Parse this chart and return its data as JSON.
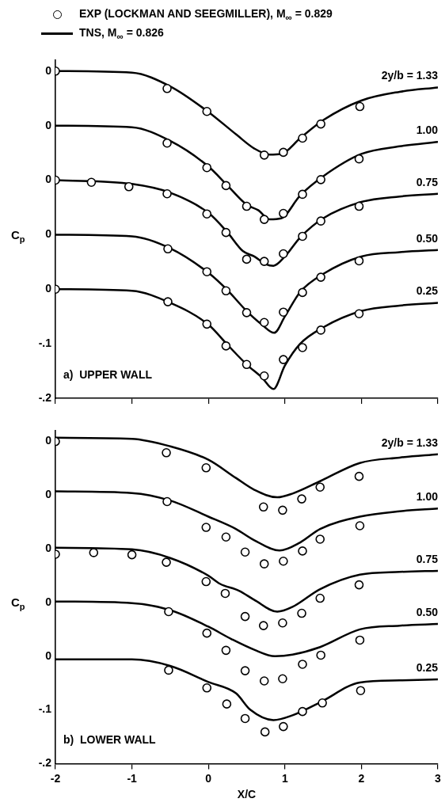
{
  "chart_data": [
    {
      "type": "line",
      "legend": "top",
      "ylabel": "C$_{p}$",
      "xlim": [
        -2,
        3
      ],
      "xticks": [
        -2,
        -1,
        0,
        1,
        2,
        3
      ],
      "ylim": [
        -0.2,
        0.42
      ],
      "yticks": [
        {
          "value": -0.2,
          "label": "-.2"
        },
        {
          "value": -0.1,
          "label": "-.1"
        },
        {
          "value": 0,
          "label": "0"
        },
        {
          "value": 0.1,
          "label": "0"
        },
        {
          "value": 0.2,
          "label": "0"
        },
        {
          "value": 0.3,
          "label": "0"
        },
        {
          "value": 0.4,
          "label": "0"
        }
      ],
      "tick_labels": "y",
      "annotations": [
        "a)  UPPER WALL",
        "2y/b = 1.33",
        "1.00",
        "0.75",
        "0.50",
        "0.25"
      ],
      "series": [
        {
          "type": "scatter",
          "name": "EXP (LOCKMAN AND SEEGMILLER), M$_{∞}$ = 0.829",
          "color": "#000000",
          "marker": "circle",
          "x": [
            -2,
            -0.54,
            -0.02,
            0.73,
            0.98,
            1.23,
            1.47,
            1.98
          ],
          "values": [
            0.4,
            0.368,
            0.326,
            0.246,
            0.251,
            0.277,
            0.303,
            0.335
          ]
        },
        {
          "type": "line",
          "name": "TNS, M$_{∞}$ = 0.826",
          "color": "#000000",
          "marker": "none",
          "x": [
            -2,
            -1,
            -0.5,
            0,
            0.37,
            0.6,
            0.8,
            0.95,
            1.2,
            1.5,
            2,
            2.5,
            3
          ],
          "values": [
            0.4,
            0.397,
            0.372,
            0.325,
            0.283,
            0.258,
            0.247,
            0.248,
            0.277,
            0.31,
            0.346,
            0.362,
            0.37
          ]
        },
        {
          "type": "scatter",
          "color": "#000000",
          "marker": "circle",
          "x": [
            -0.54,
            -0.02,
            0.23,
            0.5,
            0.73,
            0.98,
            1.23,
            1.47,
            1.97
          ],
          "values": [
            0.268,
            0.223,
            0.19,
            0.152,
            0.128,
            0.139,
            0.174,
            0.201,
            0.239
          ]
        },
        {
          "type": "line",
          "color": "#000000",
          "marker": "none",
          "x": [
            -2,
            -1,
            -0.5,
            0,
            0.25,
            0.5,
            0.65,
            0.8,
            0.95,
            1.2,
            1.5,
            2,
            2.5,
            3
          ],
          "values": [
            0.3,
            0.297,
            0.272,
            0.225,
            0.19,
            0.155,
            0.145,
            0.128,
            0.13,
            0.172,
            0.207,
            0.248,
            0.262,
            0.27
          ]
        },
        {
          "type": "scatter",
          "color": "#000000",
          "marker": "circle",
          "x": [
            -2,
            -1.53,
            -1.04,
            -0.54,
            -0.02,
            0.23,
            0.5,
            0.73,
            0.98,
            1.23,
            1.47,
            1.97
          ],
          "values": [
            0.2,
            0.196,
            0.188,
            0.175,
            0.138,
            0.104,
            0.055,
            0.051,
            0.065,
            0.097,
            0.125,
            0.152
          ]
        },
        {
          "type": "line",
          "color": "#000000",
          "marker": "none",
          "x": [
            -2,
            -1,
            -0.5,
            0,
            0.25,
            0.45,
            0.6,
            0.75,
            0.85,
            1,
            1.2,
            1.5,
            2,
            2.5,
            3
          ],
          "values": [
            0.2,
            0.193,
            0.177,
            0.14,
            0.104,
            0.07,
            0.06,
            0.046,
            0.043,
            0.06,
            0.095,
            0.13,
            0.16,
            0.17,
            0.175
          ]
        },
        {
          "type": "scatter",
          "color": "#000000",
          "marker": "circle",
          "x": [
            -0.53,
            -0.02,
            0.23,
            0.5,
            0.73,
            0.98,
            1.23,
            1.47,
            1.97
          ],
          "values": [
            0.074,
            0.032,
            -0.003,
            -0.043,
            -0.061,
            -0.042,
            -0.006,
            0.022,
            0.052
          ]
        },
        {
          "type": "line",
          "color": "#000000",
          "marker": "none",
          "x": [
            -2,
            -1,
            -0.5,
            0,
            0.25,
            0.5,
            0.7,
            0.86,
            1,
            1.2,
            1.5,
            2,
            2.5,
            3
          ],
          "values": [
            0.1,
            0.097,
            0.075,
            0.03,
            -0.002,
            -0.04,
            -0.065,
            -0.08,
            -0.05,
            -0.005,
            0.028,
            0.06,
            0.068,
            0.072
          ]
        },
        {
          "type": "scatter",
          "color": "#000000",
          "marker": "circle",
          "x": [
            -2,
            -0.53,
            -0.02,
            0.23,
            0.5,
            0.73,
            0.98,
            1.23,
            1.47,
            1.97
          ],
          "values": [
            0,
            -0.023,
            -0.064,
            -0.104,
            -0.138,
            -0.159,
            -0.129,
            -0.107,
            -0.075,
            -0.045
          ]
        },
        {
          "type": "line",
          "color": "#000000",
          "marker": "none",
          "x": [
            -2,
            -1,
            -0.5,
            0,
            0.25,
            0.5,
            0.7,
            0.85,
            1,
            1.2,
            1.5,
            2,
            2.5,
            3
          ],
          "values": [
            0,
            -0.003,
            -0.025,
            -0.065,
            -0.102,
            -0.138,
            -0.162,
            -0.183,
            -0.14,
            -0.1,
            -0.07,
            -0.04,
            -0.03,
            -0.025
          ]
        }
      ]
    },
    {
      "type": "line",
      "ylabel": "C$_{p}$",
      "xlabel": "X/C",
      "xlim": [
        -2,
        3
      ],
      "xticks": [
        -2,
        -1,
        0,
        1,
        2,
        3
      ],
      "ylim": [
        -0.2,
        0.42
      ],
      "yticks": [
        {
          "value": -0.2,
          "label": "-.2"
        },
        {
          "value": -0.1,
          "label": "-.1"
        },
        {
          "value": 0,
          "label": "0"
        },
        {
          "value": 0.1,
          "label": "0"
        },
        {
          "value": 0.2,
          "label": "0"
        },
        {
          "value": 0.3,
          "label": "0"
        },
        {
          "value": 0.4,
          "label": "0"
        }
      ],
      "annotations": [
        "b)  LOWER WALL",
        "2y/b = 1.33",
        "1.00",
        "0.75",
        "0.50",
        "0.25"
      ],
      "series": [
        {
          "type": "scatter",
          "color": "#000000",
          "marker": "circle",
          "x": [
            -2,
            -0.55,
            -0.03,
            0.72,
            0.97,
            1.22,
            1.46,
            1.97
          ],
          "values": [
            0.4,
            0.379,
            0.351,
            0.278,
            0.272,
            0.293,
            0.315,
            0.335
          ]
        },
        {
          "type": "line",
          "color": "#000000",
          "marker": "none",
          "x": [
            -2,
            -1,
            -0.5,
            0,
            0.36,
            0.6,
            0.9,
            1.1,
            1.46,
            1.98,
            2.5,
            3
          ],
          "values": [
            0.407,
            0.405,
            0.391,
            0.366,
            0.332,
            0.31,
            0.296,
            0.303,
            0.326,
            0.36,
            0.37,
            0.376
          ]
        },
        {
          "type": "scatter",
          "color": "#000000",
          "marker": "circle",
          "x": [
            -0.54,
            -0.03,
            0.23,
            0.48,
            0.73,
            0.98,
            1.23,
            1.46,
            1.98
          ],
          "values": [
            0.288,
            0.24,
            0.222,
            0.194,
            0.172,
            0.177,
            0.196,
            0.218,
            0.243
          ]
        },
        {
          "type": "line",
          "color": "#000000",
          "marker": "none",
          "x": [
            -2,
            -1,
            -0.5,
            0,
            0.36,
            0.6,
            0.93,
            1.2,
            1.46,
            1.98,
            2.5,
            3
          ],
          "values": [
            0.307,
            0.304,
            0.29,
            0.26,
            0.237,
            0.216,
            0.197,
            0.212,
            0.237,
            0.26,
            0.27,
            0.275
          ]
        },
        {
          "type": "scatter",
          "color": "#000000",
          "marker": "circle",
          "x": [
            -2,
            -1.5,
            -1,
            -0.55,
            -0.03,
            0.22,
            0.48,
            0.72,
            0.97,
            1.22,
            1.46,
            1.97
          ],
          "values": [
            0.19,
            0.193,
            0.189,
            0.175,
            0.139,
            0.117,
            0.074,
            0.057,
            0.062,
            0.08,
            0.108,
            0.133
          ]
        },
        {
          "type": "line",
          "color": "#000000",
          "marker": "none",
          "x": [
            -2,
            -1,
            -0.5,
            0,
            0.15,
            0.4,
            0.6,
            0.9,
            1.1,
            1.46,
            1.98,
            2.5,
            3
          ],
          "values": [
            0.202,
            0.199,
            0.183,
            0.15,
            0.135,
            0.122,
            0.105,
            0.083,
            0.092,
            0.125,
            0.152,
            0.157,
            0.159
          ]
        },
        {
          "type": "scatter",
          "color": "#000000",
          "marker": "circle",
          "x": [
            -0.52,
            -0.02,
            0.23,
            0.48,
            0.73,
            0.97,
            1.23,
            1.47,
            1.98
          ],
          "values": [
            0.083,
            0.043,
            0.011,
            -0.027,
            -0.046,
            -0.042,
            -0.015,
            0.002,
            0.03
          ]
        },
        {
          "type": "line",
          "color": "#000000",
          "marker": "none",
          "x": [
            -2,
            -1,
            -0.5,
            0,
            0.3,
            0.6,
            0.87,
            1.1,
            1.46,
            1.98,
            2.5,
            3
          ],
          "values": [
            0.102,
            0.099,
            0.086,
            0.055,
            0.032,
            0.012,
            0,
            0.003,
            0.017,
            0.05,
            0.057,
            0.06
          ]
        },
        {
          "type": "scatter",
          "color": "#000000",
          "marker": "circle",
          "x": [
            -0.52,
            -0.02,
            0.24,
            0.48,
            0.74,
            0.98,
            1.23,
            1.49,
            1.99
          ],
          "values": [
            -0.026,
            -0.059,
            -0.089,
            -0.116,
            -0.141,
            -0.131,
            -0.103,
            -0.087,
            -0.064
          ]
        },
        {
          "type": "line",
          "color": "#000000",
          "marker": "none",
          "x": [
            -2,
            -1,
            -0.5,
            0,
            0.36,
            0.55,
            0.85,
            1.1,
            1.46,
            1.98,
            2.5,
            3
          ],
          "values": [
            -0.006,
            -0.006,
            -0.018,
            -0.048,
            -0.069,
            -0.1,
            -0.119,
            -0.11,
            -0.086,
            -0.049,
            -0.045,
            -0.043
          ]
        }
      ]
    }
  ]
}
